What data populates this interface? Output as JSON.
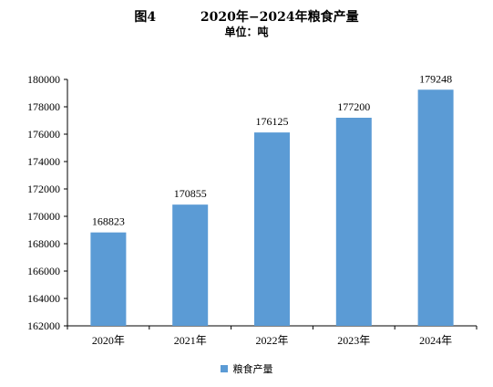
{
  "title": "图4          2020年−2024年粮食产量",
  "subtitle": "单位：吨",
  "chart_data": {
    "type": "bar",
    "categories": [
      "2020年",
      "2021年",
      "2022年",
      "2023年",
      "2024年"
    ],
    "series": [
      {
        "name": "粮食产量",
        "values": [
          168823,
          170855,
          176125,
          177200,
          179248
        ]
      }
    ],
    "yticks": [
      "162000",
      "164000",
      "166000",
      "168000",
      "170000",
      "172000",
      "174000",
      "176000",
      "178000",
      "180000"
    ],
    "ylim": [
      162000,
      180000
    ],
    "grid": false,
    "legend": "bottom",
    "bar_color": "#5B9BD5"
  }
}
